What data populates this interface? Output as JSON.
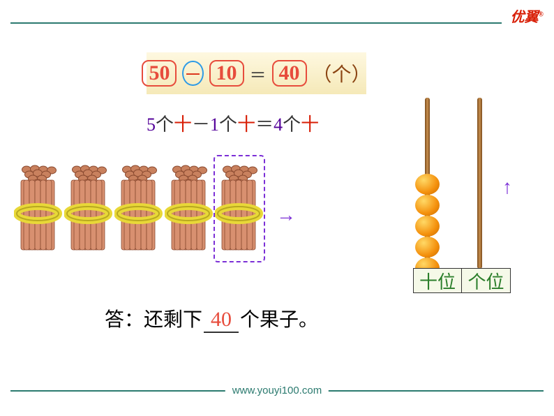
{
  "logo": {
    "text": "优翼",
    "sup": "®",
    "color_red": "#d81e06"
  },
  "equation": {
    "num1": "50",
    "op": "－",
    "num2": "10",
    "eq": "＝",
    "result": "40",
    "unit": "（个）",
    "pill_color": "#e74c3c",
    "circle_color": "#2e9be6",
    "bg_gradient": [
      "#fef8e0",
      "#f5e9b8"
    ]
  },
  "explanation": {
    "parts": [
      {
        "t": "5",
        "c": "#530099"
      },
      {
        "t": "个",
        "c": "#333"
      },
      {
        "t": "十",
        "c": "#d81e06"
      },
      {
        "t": "－",
        "c": "#333"
      },
      {
        "t": "1",
        "c": "#530099"
      },
      {
        "t": "个",
        "c": "#333"
      },
      {
        "t": "十",
        "c": "#d81e06"
      },
      {
        "t": "＝",
        "c": "#333"
      },
      {
        "t": "4",
        "c": "#530099"
      },
      {
        "t": "个",
        "c": "#333"
      },
      {
        "t": "十",
        "c": "#d81e06"
      }
    ]
  },
  "bundles": {
    "count": 5,
    "dashed_index": 4,
    "stick_color": "#d89070",
    "band_color": "#e8d838",
    "dashed_color": "#7b2fd6"
  },
  "arrows": {
    "right": "→",
    "up": "↑",
    "color": "#7b2fd6"
  },
  "abacus": {
    "rod_color": "#a0692a",
    "bead_color": "#f4900c",
    "bead_count_tens": 5,
    "bead_positions": [
      109,
      139,
      169,
      199,
      229
    ]
  },
  "place_labels": {
    "tens": "十位",
    "ones": "个位",
    "bg": "#f5f9e8",
    "text_color": "#2a7e2a"
  },
  "answer": {
    "prefix": "答：还剩下",
    "value": "40",
    "suffix": "个果子。",
    "value_color": "#e74c3c"
  },
  "footer": {
    "url": "www.youyi100.com",
    "color": "#2b7a6f"
  },
  "colors": {
    "line": "#2b7a6f",
    "bg": "#ffffff"
  }
}
